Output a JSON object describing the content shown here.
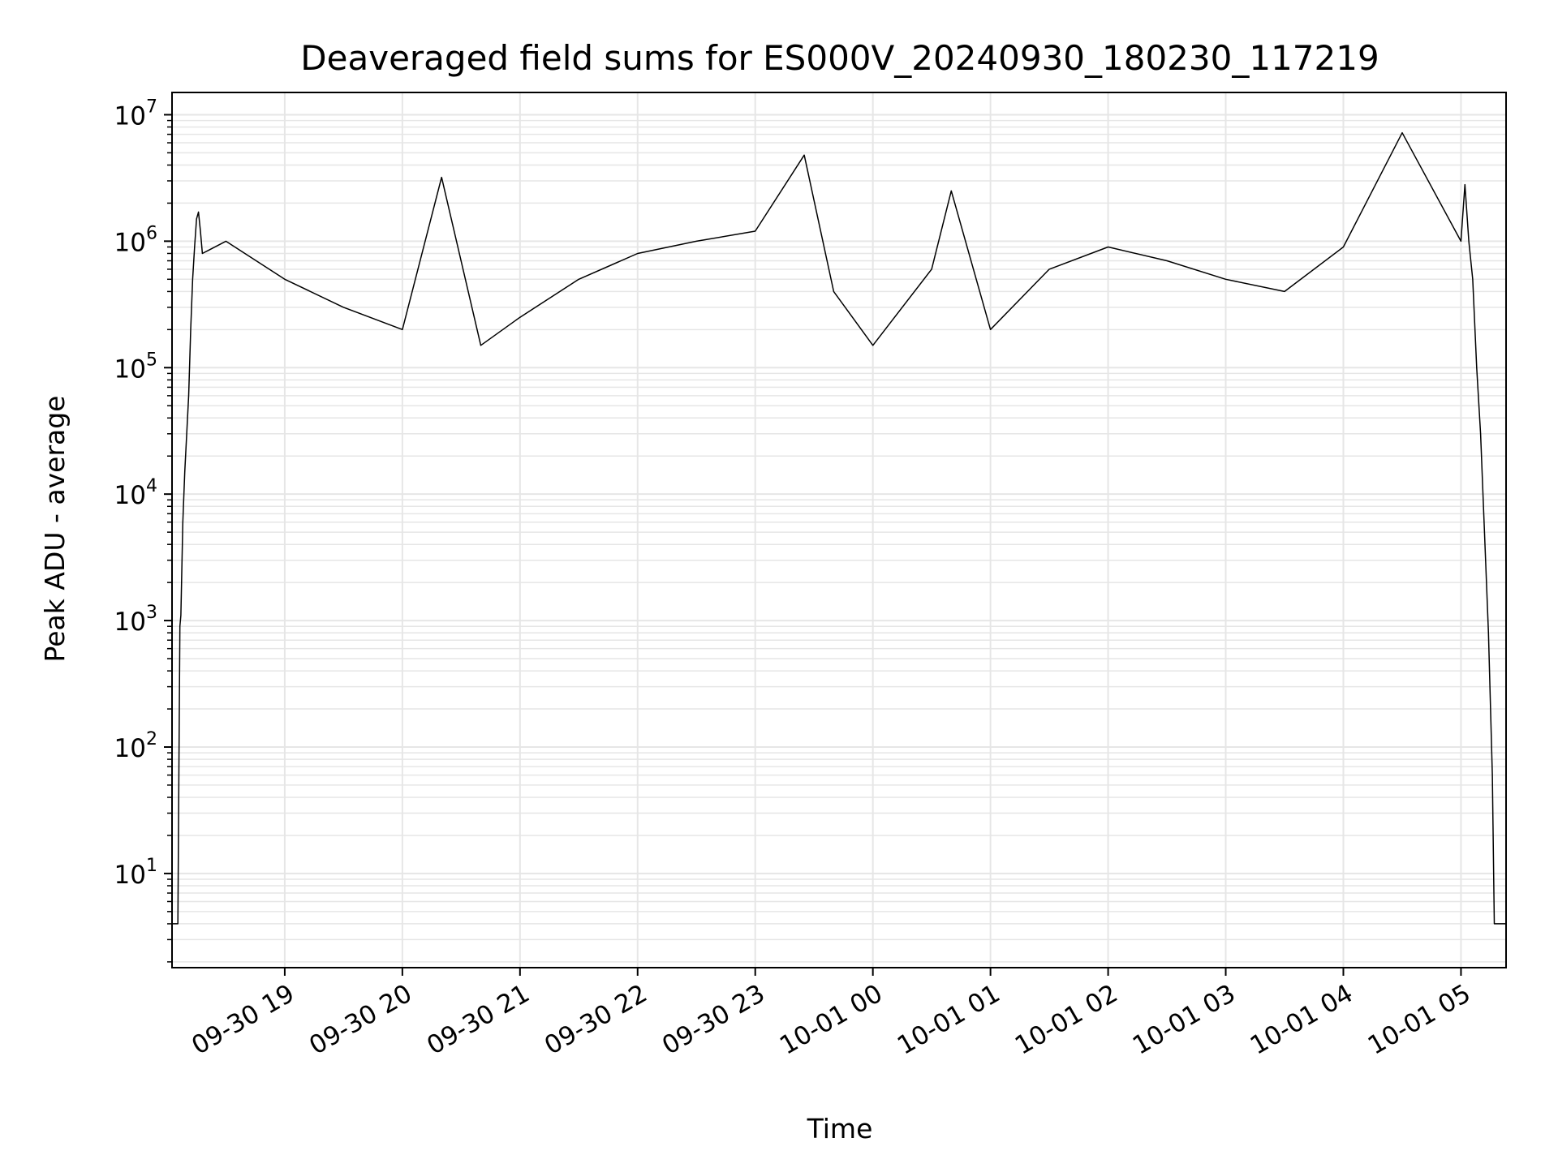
{
  "chart_data": {
    "type": "line",
    "title": "Deaveraged field sums for ES000V_20240930_180230_117219",
    "xlabel": "Time",
    "ylabel": "Peak ADU - average",
    "xscale": "time",
    "yscale": "log",
    "grid": true,
    "line_color": "#000000",
    "grid_color": "#e6e6e6",
    "xlim": [
      "2024-09-30 18:02:30",
      "2024-10-01 05:23:00"
    ],
    "ylim": [
      1.8,
      15000000
    ],
    "x_ticks": [
      {
        "value": "2024-09-30 19:00",
        "label": "09-30 19"
      },
      {
        "value": "2024-09-30 20:00",
        "label": "09-30 20"
      },
      {
        "value": "2024-09-30 21:00",
        "label": "09-30 21"
      },
      {
        "value": "2024-09-30 22:00",
        "label": "09-30 22"
      },
      {
        "value": "2024-09-30 23:00",
        "label": "09-30 23"
      },
      {
        "value": "2024-10-01 00:00",
        "label": "10-01 00"
      },
      {
        "value": "2024-10-01 01:00",
        "label": "10-01 01"
      },
      {
        "value": "2024-10-01 02:00",
        "label": "10-01 02"
      },
      {
        "value": "2024-10-01 03:00",
        "label": "10-01 03"
      },
      {
        "value": "2024-10-01 04:00",
        "label": "10-01 04"
      },
      {
        "value": "2024-10-01 05:00",
        "label": "10-01 05"
      }
    ],
    "y_ticks": [
      {
        "value": 10,
        "base": "10",
        "exp": "1"
      },
      {
        "value": 100,
        "base": "10",
        "exp": "2"
      },
      {
        "value": 1000,
        "base": "10",
        "exp": "3"
      },
      {
        "value": 10000,
        "base": "10",
        "exp": "4"
      },
      {
        "value": 100000,
        "base": "10",
        "exp": "5"
      },
      {
        "value": 1000000,
        "base": "10",
        "exp": "6"
      },
      {
        "value": 10000000,
        "base": "10",
        "exp": "7"
      }
    ],
    "series": [
      {
        "x": [
          "2024-09-30 18:02:30",
          "2024-09-30 18:04:00",
          "2024-09-30 18:05:30",
          "2024-09-30 18:06:00",
          "2024-09-30 18:06:30",
          "2024-09-30 18:07:00",
          "2024-09-30 18:08:00",
          "2024-09-30 18:09:00",
          "2024-09-30 18:10:00",
          "2024-09-30 18:11:00",
          "2024-09-30 18:12:00",
          "2024-09-30 18:13:00",
          "2024-09-30 18:14:00",
          "2024-09-30 18:15:00",
          "2024-09-30 18:16:00",
          "2024-09-30 18:17:00",
          "2024-09-30 18:18:00",
          "2024-09-30 18:30",
          "2024-09-30 19:00",
          "2024-09-30 19:30",
          "2024-09-30 20:00",
          "2024-09-30 20:20",
          "2024-09-30 20:40",
          "2024-09-30 21:00",
          "2024-09-30 21:30",
          "2024-09-30 22:00",
          "2024-09-30 22:30",
          "2024-09-30 23:00",
          "2024-09-30 23:25",
          "2024-09-30 23:40",
          "2024-10-01 00:00",
          "2024-10-01 00:30",
          "2024-10-01 00:40",
          "2024-10-01 01:00",
          "2024-10-01 01:30",
          "2024-10-01 02:00",
          "2024-10-01 02:30",
          "2024-10-01 03:00",
          "2024-10-01 03:30",
          "2024-10-01 04:00",
          "2024-10-01 04:30",
          "2024-10-01 05:00",
          "2024-10-01 05:02",
          "2024-10-01 05:04",
          "2024-10-01 05:06",
          "2024-10-01 05:08",
          "2024-10-01 05:10",
          "2024-10-01 05:12",
          "2024-10-01 05:14",
          "2024-10-01 05:16",
          "2024-10-01 05:17",
          "2024-10-01 05:18",
          "2024-10-01 05:20",
          "2024-10-01 05:23"
        ],
        "y": [
          4,
          4,
          4,
          70,
          900,
          1100,
          6000,
          15000,
          30000,
          60000,
          200000,
          500000,
          900000,
          1500000,
          1700000,
          1200000,
          800000,
          1000000,
          500000,
          300000,
          200000,
          3200000,
          150000,
          250000,
          500000,
          800000,
          1000000,
          1200000,
          4800000,
          400000,
          150000,
          600000,
          2500000,
          200000,
          600000,
          900000,
          700000,
          500000,
          400000,
          900000,
          7200000,
          1000000,
          2800000,
          1000000,
          500000,
          100000,
          30000,
          5000,
          800,
          60,
          4,
          4,
          4,
          4
        ]
      }
    ]
  }
}
